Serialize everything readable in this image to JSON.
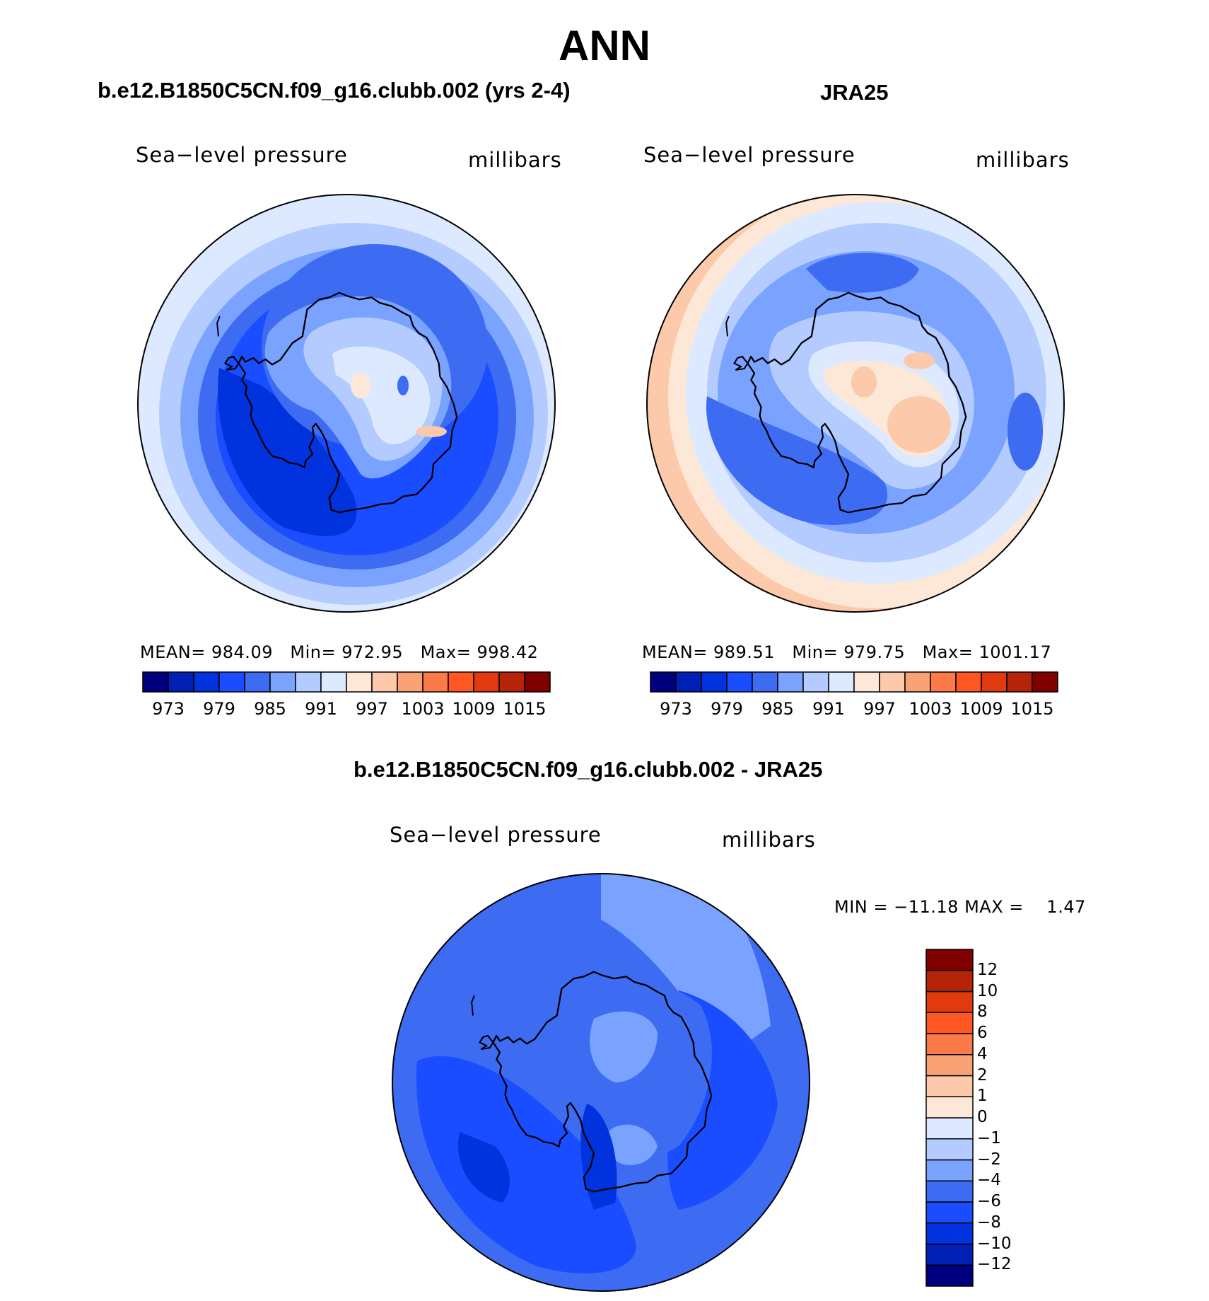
{
  "title": "ANN",
  "panels": [
    {
      "heading": "b.e12.B1850C5CN.f09_g16.clubb.002 (yrs 2-4)",
      "variable": "Sea−level pressure",
      "units": "millibars",
      "stats": {
        "mean_label": "MEAN=",
        "mean": "984.09",
        "min_label": "Min=",
        "min": "972.95",
        "max_label": "Max=",
        "max": "998.42"
      }
    },
    {
      "heading": "JRA25",
      "variable": "Sea−level pressure",
      "units": "millibars",
      "stats": {
        "mean_label": "MEAN=",
        "mean": "989.51",
        "min_label": "Min=",
        "min": "979.75",
        "max_label": "Max=",
        "max": "1001.17"
      }
    },
    {
      "heading": "b.e12.B1850C5CN.f09_g16.clubb.002 - JRA25",
      "variable": "Sea−level pressure",
      "units": "millibars",
      "stats": {
        "min_label": "MIN =",
        "min": "−11.18",
        "max_label": "MAX =",
        "max": "1.47"
      }
    }
  ],
  "colorbar_abs": {
    "colors": [
      "#00007f",
      "#001fb4",
      "#0033dd",
      "#1a4dff",
      "#3d6bf2",
      "#7aa2ff",
      "#b3cbff",
      "#dde9ff",
      "#fde8d8",
      "#fcc9aa",
      "#f9a275",
      "#fb7a47",
      "#ff5622",
      "#e03a0e",
      "#b52309",
      "#800000"
    ],
    "ticks": [
      "973",
      "979",
      "985",
      "991",
      "997",
      "1003",
      "1009",
      "1015"
    ]
  },
  "colorbar_diff": {
    "colors": [
      "#00007f",
      "#001fb4",
      "#0033dd",
      "#1a4dff",
      "#3d6bf2",
      "#7aa2ff",
      "#b3cbff",
      "#dde9ff",
      "#fde8d8",
      "#fcc9aa",
      "#f9a275",
      "#fb7a47",
      "#ff5622",
      "#e03a0e",
      "#b52309",
      "#800000"
    ],
    "ticks": [
      "−12",
      "−10",
      "−8",
      "−6",
      "−4",
      "−2",
      "−1",
      "0",
      "1",
      "2",
      "4",
      "6",
      "8",
      "10",
      "12"
    ]
  },
  "colors": {
    "coast": "#000000",
    "ocean_low": "#1a4dff",
    "ocean_mid": "#3d6bf2",
    "continent": "#b3cbff"
  }
}
